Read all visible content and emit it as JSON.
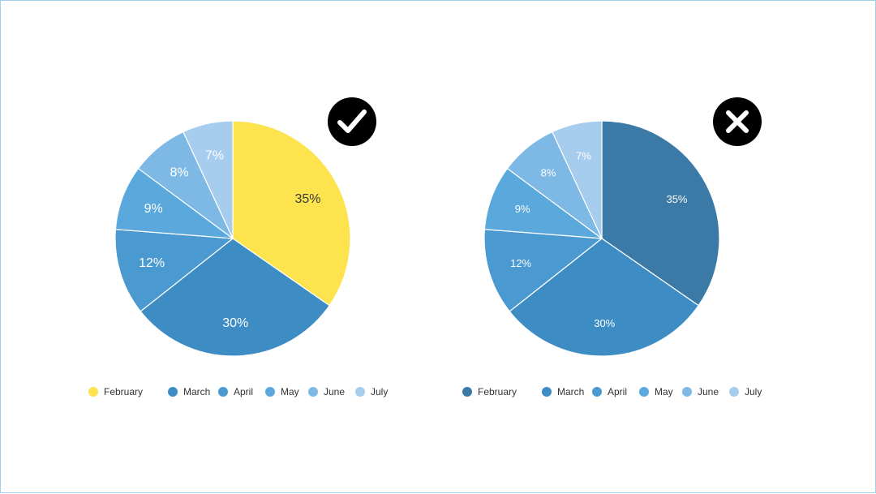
{
  "chart_data": [
    {
      "type": "pie",
      "verdict": "good",
      "verdict_icon": "checkmark-icon",
      "categories": [
        "February",
        "March",
        "April",
        "May",
        "June",
        "July"
      ],
      "values": [
        35,
        30,
        12,
        9,
        8,
        7
      ],
      "labels": [
        "35%",
        "30%",
        "12%",
        "9%",
        "8%",
        "7%"
      ],
      "colors": [
        "#fde34e",
        "#3d8cc4",
        "#4a99d0",
        "#5aa8dc",
        "#7db9e4",
        "#a7cdee"
      ],
      "legend": "bottom",
      "title": ""
    },
    {
      "type": "pie",
      "verdict": "bad",
      "verdict_icon": "cross-icon",
      "categories": [
        "February",
        "March",
        "April",
        "May",
        "June",
        "July"
      ],
      "values": [
        35,
        30,
        12,
        9,
        8,
        7
      ],
      "labels": [
        "35%",
        "30%",
        "12%",
        "9%",
        "8%",
        "7%"
      ],
      "colors": [
        "#3b7aa7",
        "#3d8cc4",
        "#4a99d0",
        "#5aa8dc",
        "#7db9e4",
        "#a7cdee"
      ],
      "legend": "bottom",
      "title": ""
    }
  ]
}
